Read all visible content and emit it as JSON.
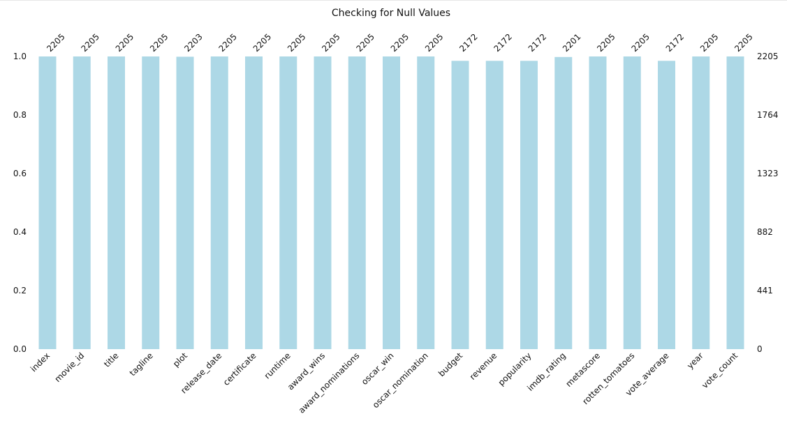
{
  "chart_data": {
    "type": "bar",
    "title": "Checking for Null Values",
    "categories": [
      "index",
      "movie_id",
      "title",
      "tagline",
      "plot",
      "release_date",
      "certificate",
      "runtime",
      "award_wins",
      "award_nominations",
      "oscar_win",
      "oscar_nomination",
      "budget",
      "revenue",
      "popularity",
      "imdb_rating",
      "metascore",
      "rotten_tomatoes",
      "vote_average",
      "year",
      "vote_count"
    ],
    "counts": [
      2205,
      2205,
      2205,
      2205,
      2203,
      2205,
      2205,
      2205,
      2205,
      2205,
      2205,
      2205,
      2172,
      2172,
      2172,
      2201,
      2205,
      2205,
      2172,
      2205,
      2205
    ],
    "total_rows": 2205,
    "ylim": [
      0,
      1
    ],
    "y_ticks": [
      "0.0",
      "0.2",
      "0.4",
      "0.6",
      "0.8",
      "1.0"
    ],
    "y2_ticks": [
      "0",
      "441",
      "882",
      "1323",
      "1764",
      "2205"
    ],
    "bar_color": "#ADD8E6",
    "grid": false
  }
}
